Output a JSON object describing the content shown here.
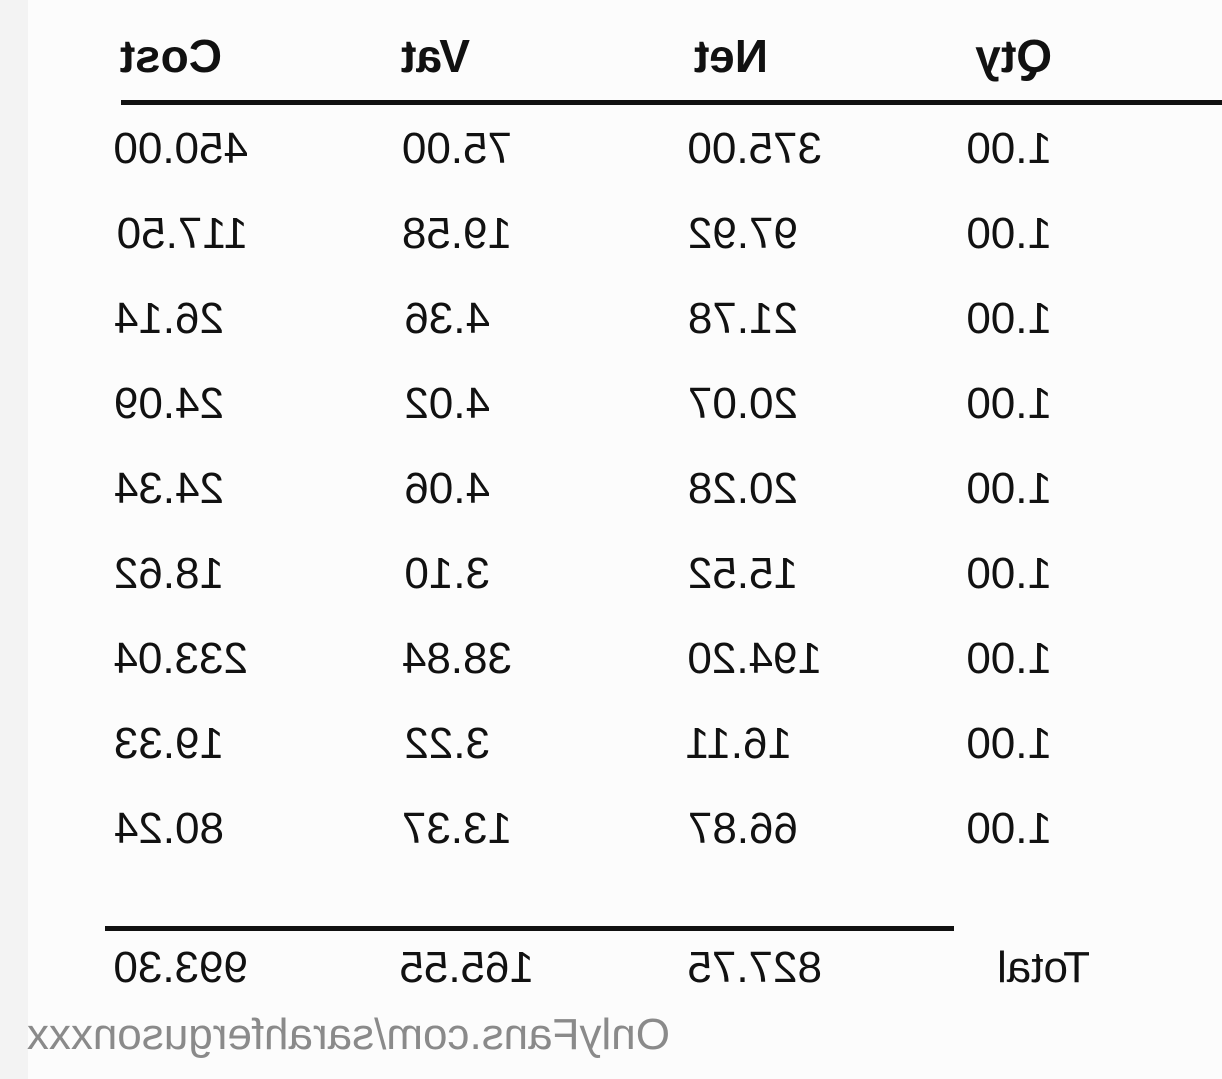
{
  "table": {
    "headers": {
      "qty": "Qty",
      "net": "Net",
      "vat": "Vat",
      "cost": "Cost"
    },
    "rows": [
      {
        "qty": "1.00",
        "net": "375.00",
        "vat": "75.00",
        "cost": "450.00"
      },
      {
        "qty": "1.00",
        "net": "97.92",
        "vat": "19.58",
        "cost": "117.50"
      },
      {
        "qty": "1.00",
        "net": "21.78",
        "vat": "4.36",
        "cost": "26.14"
      },
      {
        "qty": "1.00",
        "net": "20.07",
        "vat": "4.02",
        "cost": "24.09"
      },
      {
        "qty": "1.00",
        "net": "20.28",
        "vat": "4.06",
        "cost": "24.34"
      },
      {
        "qty": "1.00",
        "net": "15.52",
        "vat": "3.10",
        "cost": "18.62"
      },
      {
        "qty": "1.00",
        "net": "194.20",
        "vat": "38.84",
        "cost": "233.04"
      },
      {
        "qty": "1.00",
        "net": "16.11",
        "vat": "3.22",
        "cost": "19.33"
      },
      {
        "qty": "1.00",
        "net": "66.87",
        "vat": "13.37",
        "cost": "80.24"
      }
    ],
    "total": {
      "label": "Total",
      "net": "827.75",
      "vat": "165.55",
      "cost": "993.30"
    }
  },
  "watermark": "OnlyFans.com/sarahfergusonxxx"
}
